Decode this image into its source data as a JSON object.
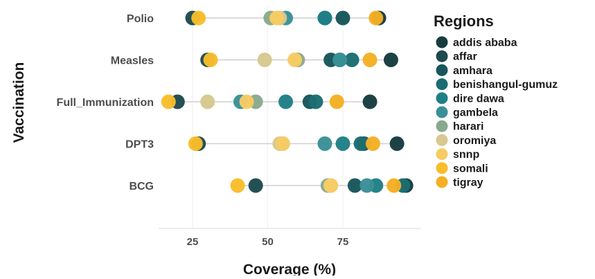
{
  "chart_data": {
    "type": "scatter",
    "subtype": "dot-plot",
    "xlabel": "Coverage (%)",
    "ylabel": "Vaccination",
    "xlim": [
      15,
      100
    ],
    "x_ticks": [
      25,
      50,
      75
    ],
    "categories": [
      "Polio",
      "Measles",
      "Full_Immunization",
      "DPT3",
      "BCG"
    ],
    "legend": {
      "title": "Regions",
      "position": "right"
    },
    "grid": "x-major",
    "series": [
      {
        "name": "addis ababa",
        "color": "#163c40",
        "values": [
          87,
          91,
          84,
          93,
          96
        ]
      },
      {
        "name": "affar",
        "color": "#1d4a4e",
        "values": [
          25,
          30,
          20,
          27,
          46
        ]
      },
      {
        "name": "amhara",
        "color": "#17565a",
        "values": [
          75,
          71,
          64,
          82,
          79
        ]
      },
      {
        "name": "benishangul-gumuz",
        "color": "#1b6d72",
        "values": [
          69,
          78,
          66,
          81,
          95
        ]
      },
      {
        "name": "dire dawa",
        "color": "#1f7f86",
        "values": [
          69,
          74,
          56,
          75,
          86
        ]
      },
      {
        "name": "gambela",
        "color": "#3a9097",
        "values": [
          56,
          74,
          41,
          69,
          83
        ]
      },
      {
        "name": "harari",
        "color": "#8aa98c",
        "values": [
          51,
          60,
          46,
          55,
          70
        ]
      },
      {
        "name": "oromiya",
        "color": "#d6c88e",
        "values": [
          54,
          49,
          30,
          54,
          71
        ]
      },
      {
        "name": "snnp",
        "color": "#f8cb63",
        "values": [
          53,
          59,
          43,
          55,
          71
        ]
      },
      {
        "name": "somali",
        "color": "#f8bd2a",
        "values": [
          27,
          31,
          17,
          26,
          40
        ]
      },
      {
        "name": "tigray",
        "color": "#f4b023",
        "values": [
          86,
          84,
          73,
          85,
          92
        ]
      }
    ]
  }
}
